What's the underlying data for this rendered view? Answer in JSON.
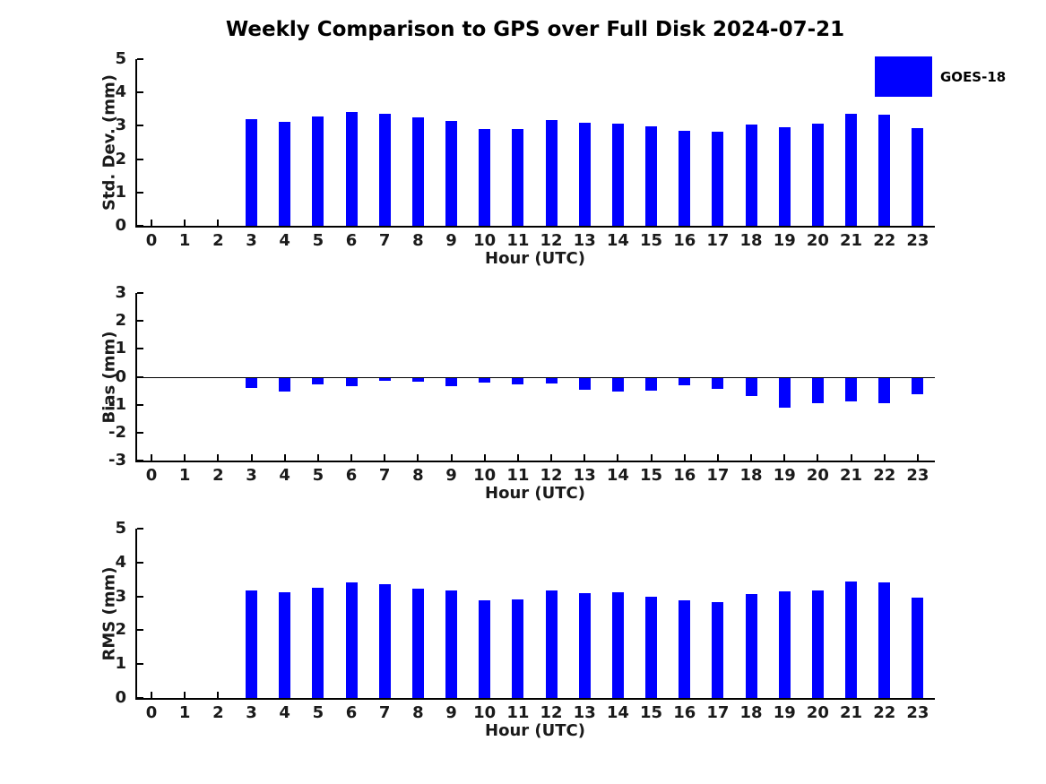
{
  "title": "Weekly Comparison to GPS over Full Disk 2024-07-21",
  "legend": {
    "label": "GOES-18",
    "color": "#0000ff",
    "position": "top-right"
  },
  "colors": {
    "bar": "#0000ff",
    "axis": "#000000",
    "text": "#1a1a1a",
    "background": "#ffffff"
  },
  "chart_data": [
    {
      "id": "stddev",
      "type": "bar",
      "series_name": "GOES-18",
      "ylabel": "Std. Dev. (mm)",
      "xlabel": "Hour (UTC)",
      "ylim": [
        0,
        5
      ],
      "yticks": [
        0,
        1,
        2,
        3,
        4,
        5
      ],
      "xlim": [
        -0.5,
        23.5
      ],
      "grid": false,
      "x": [
        0,
        1,
        2,
        3,
        4,
        5,
        6,
        7,
        8,
        9,
        10,
        11,
        12,
        13,
        14,
        15,
        16,
        17,
        18,
        19,
        20,
        21,
        22,
        23
      ],
      "values": [
        null,
        null,
        null,
        3.19,
        3.11,
        3.29,
        3.42,
        3.35,
        3.26,
        3.15,
        2.9,
        2.9,
        3.17,
        3.09,
        3.07,
        2.98,
        2.85,
        2.81,
        3.05,
        2.96,
        3.06,
        3.36,
        3.32,
        2.92
      ]
    },
    {
      "id": "bias",
      "type": "bar",
      "series_name": "GOES-18",
      "ylabel": "Bias (mm)",
      "xlabel": "Hour (UTC)",
      "ylim": [
        -3,
        3
      ],
      "yticks": [
        -3,
        -2,
        -1,
        0,
        1,
        2,
        3
      ],
      "xlim": [
        -0.5,
        23.5
      ],
      "grid": false,
      "zero_line": true,
      "x": [
        0,
        1,
        2,
        3,
        4,
        5,
        6,
        7,
        8,
        9,
        10,
        11,
        12,
        13,
        14,
        15,
        16,
        17,
        18,
        19,
        20,
        21,
        22,
        23
      ],
      "values": [
        null,
        null,
        null,
        -0.36,
        -0.49,
        -0.25,
        -0.29,
        -0.12,
        -0.15,
        -0.32,
        -0.19,
        -0.25,
        -0.21,
        -0.42,
        -0.5,
        -0.47,
        -0.28,
        -0.39,
        -0.66,
        -1.08,
        -0.93,
        -0.85,
        -0.93,
        -0.6
      ]
    },
    {
      "id": "rms",
      "type": "bar",
      "series_name": "GOES-18",
      "ylabel": "RMS (mm)",
      "xlabel": "Hour (UTC)",
      "ylim": [
        0,
        5
      ],
      "yticks": [
        0,
        1,
        2,
        3,
        4,
        5
      ],
      "xlim": [
        -0.5,
        23.5
      ],
      "grid": false,
      "x": [
        0,
        1,
        2,
        3,
        4,
        5,
        6,
        7,
        8,
        9,
        10,
        11,
        12,
        13,
        14,
        15,
        16,
        17,
        18,
        19,
        20,
        21,
        22,
        23
      ],
      "values": [
        null,
        null,
        null,
        3.17,
        3.13,
        3.26,
        3.42,
        3.36,
        3.23,
        3.17,
        2.89,
        2.92,
        3.18,
        3.1,
        3.11,
        2.99,
        2.88,
        2.84,
        3.07,
        3.14,
        3.18,
        3.45,
        3.42,
        2.96
      ]
    }
  ]
}
